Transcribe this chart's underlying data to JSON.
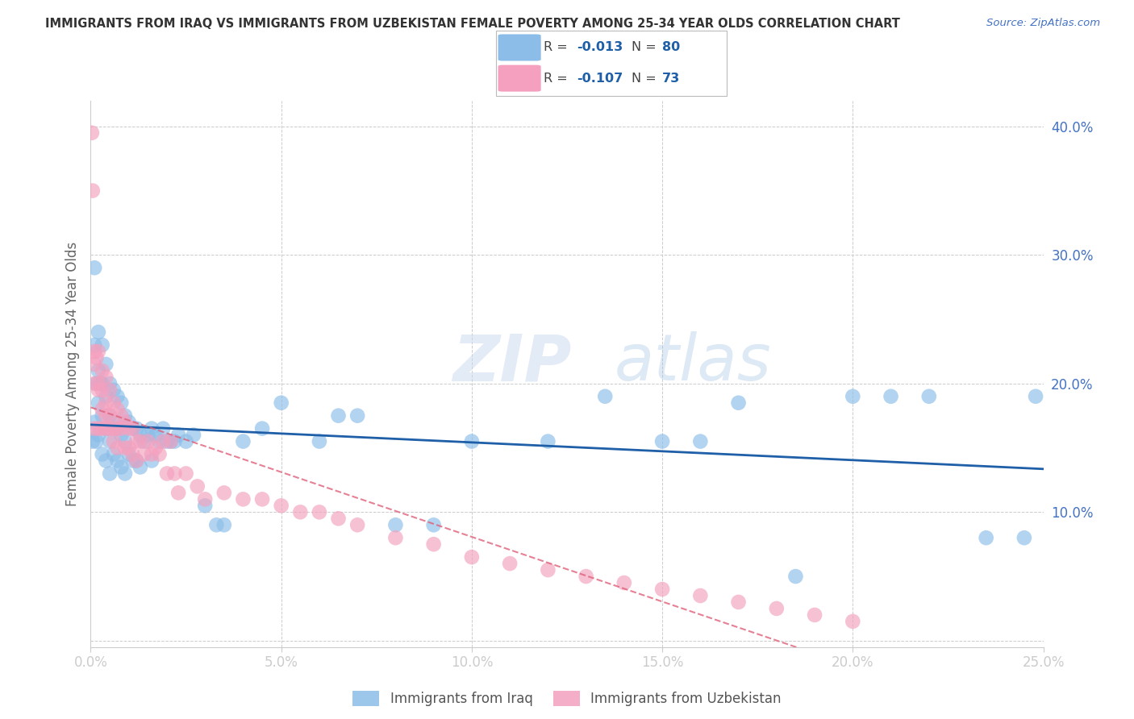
{
  "title": "IMMIGRANTS FROM IRAQ VS IMMIGRANTS FROM UZBEKISTAN FEMALE POVERTY AMONG 25-34 YEAR OLDS CORRELATION CHART",
  "source": "Source: ZipAtlas.com",
  "ylabel": "Female Poverty Among 25-34 Year Olds",
  "xlim": [
    0.0,
    0.25
  ],
  "ylim": [
    -0.005,
    0.42
  ],
  "xtick_vals": [
    0.0,
    0.05,
    0.1,
    0.15,
    0.2,
    0.25
  ],
  "xtick_labels": [
    "0.0%",
    "5.0%",
    "10.0%",
    "15.0%",
    "20.0%",
    "25.0%"
  ],
  "ytick_vals": [
    0.0,
    0.1,
    0.2,
    0.3,
    0.4
  ],
  "ytick_labels": [
    "",
    "10.0%",
    "20.0%",
    "30.0%",
    "40.0%"
  ],
  "iraq_R": -0.013,
  "iraq_N": 80,
  "uzbekistan_R": -0.107,
  "uzbekistan_N": 73,
  "iraq_color": "#8BBDE8",
  "uzbekistan_color": "#F4A0BE",
  "iraq_line_color": "#1E5FA8",
  "uzbekistan_line_color": "#E0607A",
  "watermark_zip": "ZIP",
  "watermark_atlas": "atlas",
  "legend_iraq": "Immigrants from Iraq",
  "legend_uzbekistan": "Immigrants from Uzbekistan",
  "iraq_x": [
    0.0005,
    0.001,
    0.001,
    0.001,
    0.0015,
    0.0015,
    0.002,
    0.002,
    0.002,
    0.002,
    0.0025,
    0.003,
    0.003,
    0.003,
    0.003,
    0.004,
    0.004,
    0.004,
    0.004,
    0.005,
    0.005,
    0.005,
    0.005,
    0.006,
    0.006,
    0.006,
    0.007,
    0.007,
    0.007,
    0.008,
    0.008,
    0.008,
    0.009,
    0.009,
    0.009,
    0.01,
    0.01,
    0.011,
    0.011,
    0.012,
    0.012,
    0.013,
    0.013,
    0.014,
    0.015,
    0.016,
    0.016,
    0.017,
    0.018,
    0.019,
    0.02,
    0.021,
    0.022,
    0.023,
    0.025,
    0.027,
    0.03,
    0.033,
    0.035,
    0.04,
    0.045,
    0.05,
    0.06,
    0.065,
    0.07,
    0.08,
    0.09,
    0.1,
    0.12,
    0.135,
    0.15,
    0.16,
    0.17,
    0.185,
    0.2,
    0.21,
    0.22,
    0.235,
    0.245,
    0.248
  ],
  "iraq_y": [
    0.155,
    0.29,
    0.23,
    0.17,
    0.2,
    0.155,
    0.24,
    0.21,
    0.185,
    0.16,
    0.2,
    0.23,
    0.2,
    0.175,
    0.145,
    0.215,
    0.19,
    0.165,
    0.14,
    0.2,
    0.175,
    0.155,
    0.13,
    0.195,
    0.17,
    0.145,
    0.19,
    0.165,
    0.14,
    0.185,
    0.16,
    0.135,
    0.175,
    0.155,
    0.13,
    0.17,
    0.145,
    0.165,
    0.14,
    0.165,
    0.14,
    0.16,
    0.135,
    0.155,
    0.16,
    0.165,
    0.14,
    0.16,
    0.155,
    0.165,
    0.155,
    0.155,
    0.155,
    0.16,
    0.155,
    0.16,
    0.105,
    0.09,
    0.09,
    0.155,
    0.165,
    0.185,
    0.155,
    0.175,
    0.175,
    0.09,
    0.09,
    0.155,
    0.155,
    0.19,
    0.155,
    0.155,
    0.185,
    0.05,
    0.19,
    0.19,
    0.19,
    0.08,
    0.08,
    0.19
  ],
  "uzbekistan_x": [
    0.0003,
    0.0005,
    0.001,
    0.001,
    0.001,
    0.001,
    0.0015,
    0.002,
    0.002,
    0.002,
    0.002,
    0.003,
    0.003,
    0.003,
    0.003,
    0.004,
    0.004,
    0.004,
    0.004,
    0.005,
    0.005,
    0.005,
    0.006,
    0.006,
    0.006,
    0.007,
    0.007,
    0.007,
    0.008,
    0.008,
    0.009,
    0.009,
    0.01,
    0.01,
    0.011,
    0.011,
    0.012,
    0.012,
    0.013,
    0.014,
    0.015,
    0.016,
    0.017,
    0.018,
    0.019,
    0.02,
    0.021,
    0.022,
    0.023,
    0.025,
    0.028,
    0.03,
    0.035,
    0.04,
    0.045,
    0.05,
    0.055,
    0.06,
    0.065,
    0.07,
    0.08,
    0.09,
    0.1,
    0.11,
    0.12,
    0.13,
    0.14,
    0.15,
    0.16,
    0.17,
    0.18,
    0.19,
    0.2
  ],
  "uzbekistan_y": [
    0.395,
    0.35,
    0.225,
    0.215,
    0.2,
    0.165,
    0.22,
    0.225,
    0.2,
    0.195,
    0.165,
    0.21,
    0.195,
    0.18,
    0.165,
    0.205,
    0.185,
    0.175,
    0.165,
    0.195,
    0.175,
    0.165,
    0.185,
    0.165,
    0.155,
    0.18,
    0.165,
    0.15,
    0.175,
    0.165,
    0.17,
    0.15,
    0.165,
    0.15,
    0.165,
    0.145,
    0.155,
    0.14,
    0.155,
    0.145,
    0.155,
    0.145,
    0.15,
    0.145,
    0.155,
    0.13,
    0.155,
    0.13,
    0.115,
    0.13,
    0.12,
    0.11,
    0.115,
    0.11,
    0.11,
    0.105,
    0.1,
    0.1,
    0.095,
    0.09,
    0.08,
    0.075,
    0.065,
    0.06,
    0.055,
    0.05,
    0.045,
    0.04,
    0.035,
    0.03,
    0.025,
    0.02,
    0.015
  ]
}
